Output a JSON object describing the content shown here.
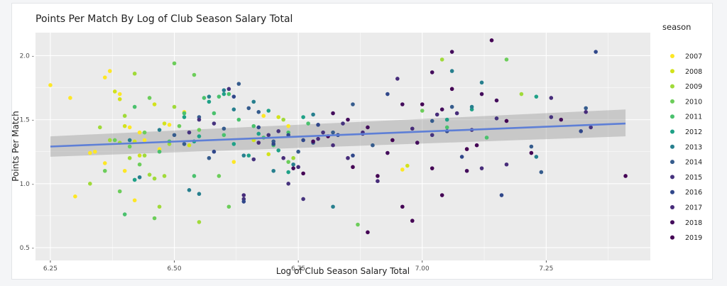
{
  "chart_data": {
    "type": "scatter",
    "title": "Points Per Match By Log of Club Season Salary Total",
    "xlabel": "Log of Club Season Salary Total",
    "ylabel": "Points Per Match",
    "xlim": [
      6.22,
      7.46
    ],
    "ylim": [
      0.4,
      2.18
    ],
    "x_ticks": [
      6.25,
      6.5,
      6.75,
      7.0,
      7.25
    ],
    "x_tick_labels": [
      "6.25",
      "6.50",
      "6.75",
      "7.00",
      "7.25"
    ],
    "y_ticks": [
      0.5,
      1.0,
      1.5,
      2.0
    ],
    "y_tick_labels": [
      "0.5 -",
      "1.0 -",
      "1.5 -",
      "2.0 -"
    ],
    "grid": true,
    "legend_title": "season",
    "legend_position": "right",
    "trend_line": {
      "x": [
        6.25,
        7.41
      ],
      "y": [
        1.29,
        1.47
      ],
      "ci_start": [
        1.21,
        1.37
      ],
      "ci_end": [
        1.37,
        1.58
      ],
      "color": "#5e7fd6"
    },
    "series": [
      {
        "name": "2007",
        "color": "#fde725",
        "points": [
          [
            6.25,
            1.77
          ],
          [
            6.29,
            1.67
          ],
          [
            6.3,
            0.9
          ],
          [
            6.33,
            1.24
          ],
          [
            6.34,
            1.25
          ],
          [
            6.36,
            1.16
          ],
          [
            6.36,
            1.83
          ],
          [
            6.37,
            1.88
          ],
          [
            6.39,
            1.7
          ],
          [
            6.4,
            1.1
          ],
          [
            6.41,
            1.44
          ],
          [
            6.42,
            0.87
          ],
          [
            6.43,
            1.4
          ],
          [
            6.44,
            1.34
          ],
          [
            6.47,
            1.27
          ],
          [
            6.49,
            1.46
          ],
          [
            6.52,
            1.56
          ],
          [
            6.62,
            1.17
          ],
          [
            6.68,
            1.53
          ],
          [
            6.73,
            1.45
          ],
          [
            6.96,
            1.11
          ]
        ]
      },
      {
        "name": "2008",
        "color": "#d2e21b",
        "points": [
          [
            6.38,
            1.72
          ],
          [
            6.39,
            1.66
          ],
          [
            6.4,
            1.45
          ],
          [
            6.42,
            1.33
          ],
          [
            6.43,
            1.22
          ],
          [
            6.46,
            1.62
          ],
          [
            6.48,
            1.47
          ],
          [
            6.53,
            1.3
          ],
          [
            6.66,
            1.34
          ],
          [
            6.69,
            1.23
          ],
          [
            6.71,
            1.52
          ],
          [
            6.97,
            1.14
          ]
        ]
      },
      {
        "name": "2009",
        "color": "#a0da39",
        "points": [
          [
            6.33,
            1.0
          ],
          [
            6.35,
            1.44
          ],
          [
            6.37,
            1.34
          ],
          [
            6.39,
            1.32
          ],
          [
            6.4,
            1.53
          ],
          [
            6.41,
            1.2
          ],
          [
            6.42,
            1.86
          ],
          [
            6.44,
            1.22
          ],
          [
            6.45,
            1.07
          ],
          [
            6.46,
            1.04
          ],
          [
            6.47,
            0.82
          ],
          [
            6.48,
            1.06
          ],
          [
            6.49,
            1.31
          ],
          [
            6.5,
            1.6
          ],
          [
            6.55,
            0.7
          ],
          [
            6.72,
            1.5
          ],
          [
            6.74,
            1.2
          ],
          [
            7.04,
            1.97
          ],
          [
            7.2,
            1.7
          ]
        ]
      },
      {
        "name": "2010",
        "color": "#6ccd5a",
        "points": [
          [
            6.36,
            1.1
          ],
          [
            6.38,
            1.34
          ],
          [
            6.39,
            0.94
          ],
          [
            6.41,
            1.29
          ],
          [
            6.43,
            1.15
          ],
          [
            6.44,
            1.4
          ],
          [
            6.45,
            1.67
          ],
          [
            6.46,
            0.73
          ],
          [
            6.5,
            1.94
          ],
          [
            6.51,
            1.45
          ],
          [
            6.54,
            1.85
          ],
          [
            6.55,
            1.42
          ],
          [
            6.59,
            1.06
          ],
          [
            6.61,
            0.82
          ],
          [
            6.73,
            1.17
          ],
          [
            6.87,
            0.68
          ],
          [
            7.0,
            1.57
          ],
          [
            7.17,
            1.97
          ]
        ]
      },
      {
        "name": "2011",
        "color": "#4ac16d",
        "points": [
          [
            6.4,
            0.76
          ],
          [
            6.42,
            1.6
          ],
          [
            6.47,
            1.25
          ],
          [
            6.49,
            1.33
          ],
          [
            6.52,
            1.55
          ],
          [
            6.54,
            1.06
          ],
          [
            6.56,
            1.67
          ],
          [
            6.58,
            1.55
          ],
          [
            6.59,
            1.68
          ],
          [
            6.6,
            1.38
          ],
          [
            6.61,
            1.7
          ],
          [
            6.63,
            1.5
          ],
          [
            6.66,
            1.45
          ],
          [
            6.68,
            1.36
          ],
          [
            6.7,
            1.3
          ],
          [
            6.73,
            1.4
          ],
          [
            6.77,
            1.47
          ],
          [
            7.05,
            1.44
          ],
          [
            7.13,
            1.36
          ]
        ]
      },
      {
        "name": "2012",
        "color": "#1fa187",
        "points": [
          [
            6.42,
            1.03
          ],
          [
            6.52,
            1.52
          ],
          [
            6.54,
            1.33
          ],
          [
            6.55,
            1.37
          ],
          [
            6.57,
            1.64
          ],
          [
            6.6,
            1.7
          ],
          [
            6.62,
            1.31
          ],
          [
            6.65,
            1.22
          ],
          [
            6.67,
            1.39
          ],
          [
            6.69,
            1.57
          ],
          [
            6.71,
            1.26
          ],
          [
            6.73,
            1.09
          ],
          [
            6.76,
            1.52
          ],
          [
            7.05,
            1.5
          ],
          [
            7.1,
            1.58
          ],
          [
            7.23,
            1.68
          ]
        ]
      },
      {
        "name": "2013",
        "color": "#277f8e",
        "points": [
          [
            6.41,
            1.34
          ],
          [
            6.43,
            1.05
          ],
          [
            6.47,
            1.42
          ],
          [
            6.53,
            0.95
          ],
          [
            6.55,
            0.92
          ],
          [
            6.57,
            1.68
          ],
          [
            6.6,
            1.73
          ],
          [
            6.62,
            1.58
          ],
          [
            6.64,
            1.22
          ],
          [
            6.66,
            1.64
          ],
          [
            6.7,
            1.1
          ],
          [
            6.74,
            1.15
          ],
          [
            6.78,
            1.54
          ],
          [
            6.82,
            0.82
          ],
          [
            7.06,
            1.88
          ],
          [
            7.1,
            1.6
          ],
          [
            7.12,
            1.79
          ],
          [
            7.23,
            1.21
          ]
        ]
      },
      {
        "name": "2014",
        "color": "#365c8d",
        "points": [
          [
            6.5,
            1.38
          ],
          [
            6.52,
            1.31
          ],
          [
            6.55,
            1.52
          ],
          [
            6.57,
            1.2
          ],
          [
            6.6,
            1.43
          ],
          [
            6.63,
            1.78
          ],
          [
            6.65,
            1.59
          ],
          [
            6.67,
            1.56
          ],
          [
            6.7,
            1.33
          ],
          [
            6.75,
            1.25
          ],
          [
            6.78,
            1.32
          ],
          [
            6.82,
            1.4
          ],
          [
            6.86,
            1.62
          ],
          [
            6.9,
            1.3
          ],
          [
            7.02,
            1.49
          ],
          [
            7.06,
            1.6
          ],
          [
            7.22,
            1.29
          ],
          [
            7.24,
            1.09
          ],
          [
            7.33,
            1.59
          ]
        ]
      },
      {
        "name": "2015",
        "color": "#46337e",
        "points": [
          [
            6.53,
            1.4
          ],
          [
            6.55,
            1.5
          ],
          [
            6.58,
            1.47
          ],
          [
            6.61,
            1.74
          ],
          [
            6.64,
            0.88
          ],
          [
            6.66,
            1.19
          ],
          [
            6.69,
            1.38
          ],
          [
            6.71,
            1.41
          ],
          [
            6.73,
            1.0
          ],
          [
            6.76,
            0.88
          ],
          [
            6.8,
            1.4
          ],
          [
            6.84,
            1.47
          ],
          [
            6.88,
            1.39
          ],
          [
            7.02,
            1.38
          ],
          [
            7.1,
            1.42
          ],
          [
            7.15,
            1.51
          ],
          [
            7.26,
            1.52
          ],
          [
            7.34,
            1.44
          ]
        ]
      },
      {
        "name": "2016",
        "color": "#30478a",
        "points": [
          [
            6.58,
            1.25
          ],
          [
            6.62,
            1.68
          ],
          [
            6.64,
            0.86
          ],
          [
            6.67,
            1.44
          ],
          [
            6.7,
            1.31
          ],
          [
            6.73,
            1.38
          ],
          [
            6.76,
            1.34
          ],
          [
            6.79,
            1.46
          ],
          [
            6.83,
            1.38
          ],
          [
            6.86,
            1.22
          ],
          [
            6.93,
            1.7
          ],
          [
            7.05,
            1.41
          ],
          [
            7.08,
            1.21
          ],
          [
            7.16,
            0.91
          ],
          [
            7.32,
            1.41
          ],
          [
            7.35,
            2.03
          ]
        ]
      },
      {
        "name": "2017",
        "color": "#472c7a",
        "points": [
          [
            6.64,
            0.91
          ],
          [
            6.67,
            1.32
          ],
          [
            6.72,
            1.2
          ],
          [
            6.75,
            1.13
          ],
          [
            6.79,
            1.35
          ],
          [
            6.82,
            1.3
          ],
          [
            6.85,
            1.2
          ],
          [
            6.88,
            1.4
          ],
          [
            6.91,
            1.02
          ],
          [
            6.95,
            1.82
          ],
          [
            6.98,
            1.43
          ],
          [
            7.03,
            1.54
          ],
          [
            7.07,
            1.55
          ],
          [
            7.12,
            1.12
          ],
          [
            7.17,
            1.15
          ],
          [
            7.26,
            1.67
          ],
          [
            7.33,
            1.56
          ]
        ]
      },
      {
        "name": "2018",
        "color": "#440d5c",
        "points": [
          [
            6.74,
            1.12
          ],
          [
            6.78,
            1.33
          ],
          [
            6.82,
            1.55
          ],
          [
            6.85,
            1.5
          ],
          [
            6.89,
            1.44
          ],
          [
            6.93,
            1.24
          ],
          [
            6.96,
            1.62
          ],
          [
            6.99,
            1.32
          ],
          [
            7.02,
            1.87
          ],
          [
            7.04,
            1.58
          ],
          [
            7.06,
            2.03
          ],
          [
            7.09,
            1.1
          ],
          [
            7.12,
            1.7
          ],
          [
            7.15,
            1.65
          ],
          [
            7.28,
            1.5
          ]
        ]
      },
      {
        "name": "2019",
        "color": "#440154",
        "points": [
          [
            6.76,
            1.08
          ],
          [
            6.81,
            1.37
          ],
          [
            6.86,
            1.13
          ],
          [
            6.89,
            0.62
          ],
          [
            6.91,
            1.06
          ],
          [
            6.94,
            1.34
          ],
          [
            6.96,
            0.82
          ],
          [
            6.98,
            0.71
          ],
          [
            7.0,
            1.62
          ],
          [
            7.02,
            1.12
          ],
          [
            7.04,
            0.91
          ],
          [
            7.06,
            1.74
          ],
          [
            7.09,
            1.27
          ],
          [
            7.11,
            1.3
          ],
          [
            7.14,
            2.12
          ],
          [
            7.17,
            1.49
          ],
          [
            7.22,
            1.24
          ],
          [
            7.41,
            1.06
          ]
        ]
      }
    ]
  }
}
